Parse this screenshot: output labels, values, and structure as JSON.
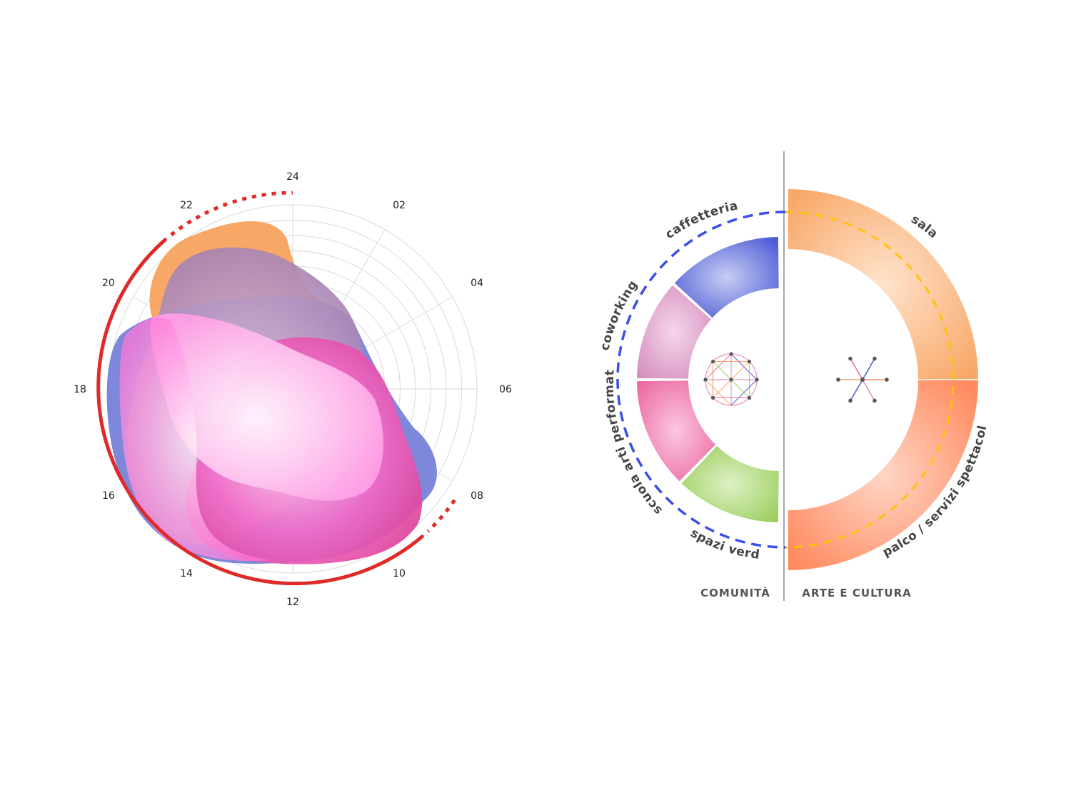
{
  "left_chart": {
    "hour_labels": [
      "24",
      "02",
      "04",
      "06",
      "08",
      "10",
      "12",
      "14",
      "16",
      "18",
      "20",
      "22"
    ],
    "colors": {
      "grid": "#d9d9d9",
      "red_arc": "#e02a2a",
      "orange": "#f7a25e",
      "blue": "#7b86d8",
      "mauve": "#b48bb7",
      "pink": "#ff8fdc",
      "magenta": "#f04fc0"
    }
  },
  "right_diagram": {
    "groups": [
      {
        "label": "COMUNITÀ"
      },
      {
        "label": "ARTE E CULTURA"
      }
    ],
    "segments_left": [
      {
        "label": "caffetteria",
        "color": "#4d5bd6",
        "light": "#c7cdf3"
      },
      {
        "label": "coworking",
        "color": "#d48fbd",
        "light": "#f6d6ec"
      },
      {
        "label": "scuola arti performative",
        "color": "#ec6aa2",
        "light": "#fbc6e0"
      },
      {
        "label": "spazi verdi",
        "color": "#9ccd5e",
        "light": "#def2c4"
      }
    ],
    "segments_right": [
      {
        "label": "sala",
        "color": "#f8a868",
        "light": "#ffe3cc"
      },
      {
        "label": "palco / servizi spettacoli",
        "color": "#ff8a5f",
        "light": "#ffd6c6"
      }
    ],
    "colors": {
      "divider": "#8a8a8a",
      "dash_blue": "#3a4ee8",
      "dash_yellow": "#ffc20e",
      "node": "#555555"
    }
  }
}
